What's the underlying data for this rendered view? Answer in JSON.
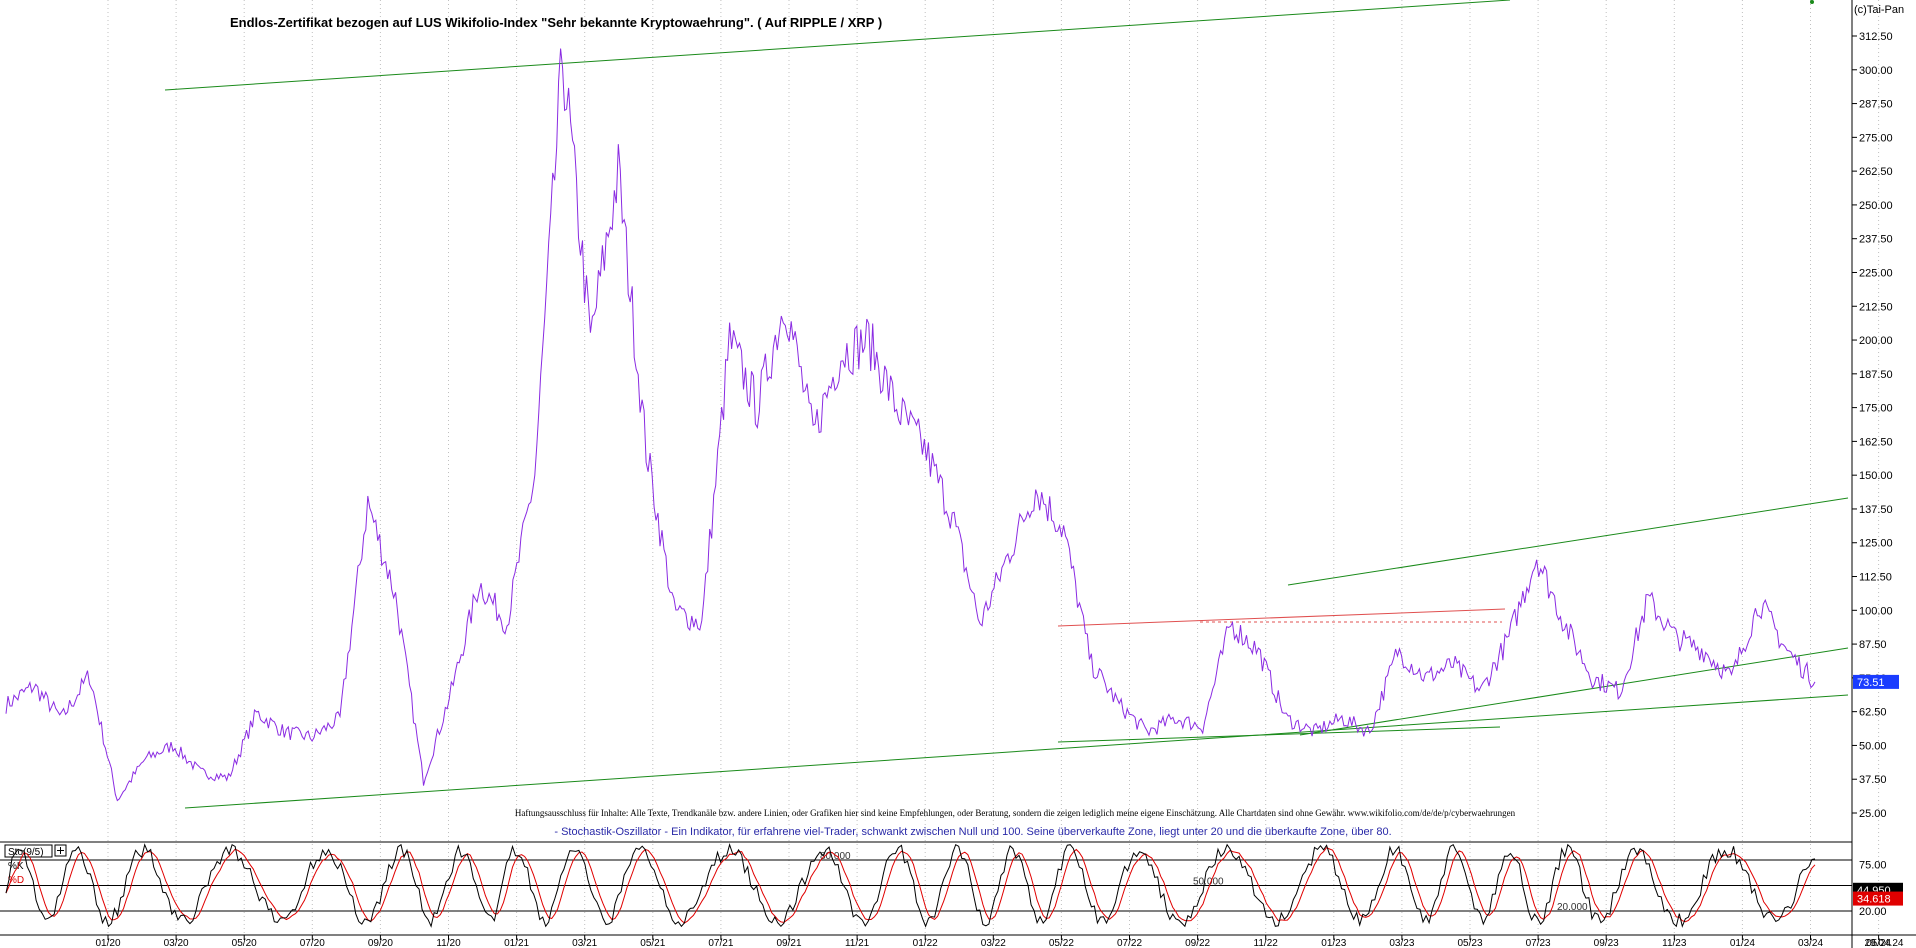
{
  "copyright": "(c)Tai-Pan",
  "title": "Endlos-Zertifikat bezogen auf LUS Wikifolio-Index \"Sehr bekannte Kryptowaehrung\". ( Auf RIPPLE / XRP )",
  "disclaimer": "Haftungsausschluss für Inhalte: Alle Texte, Trendkanäle bzw. andere Linien, oder Grafiken hier sind keine Empfehlungen, oder Beratung, sondern die zeigen lediglich meine eigene Einschätzung. Alle Chartdaten sind ohne Gewähr. www.wikifolio.com/de/de/p/cyberwaehrungen",
  "stoch_note": "- Stochastik-Oszillator - Ein Indikator, für erfahrene viel-Trader, schwankt zwischen Null und 100. Seine überverkaufte Zone, liegt unter 20 und die überkaufte Zone, über 80.",
  "colors": {
    "price": "#8a2be2",
    "trend": "#1a8a1a",
    "resistance": "#e05050",
    "k_line": "#000000",
    "d_line": "#e00000",
    "axis_text": "#000000",
    "last_price_bg": "#1a3cff",
    "k_box_bg": "#000000",
    "d_box_bg": "#e00000"
  },
  "chart_data": [
    {
      "type": "line",
      "ylim": [
        25.0,
        312.5
      ],
      "y_ticks": [
        "312.50",
        "300.00",
        "287.50",
        "275.00",
        "262.50",
        "250.00",
        "237.50",
        "225.00",
        "212.50",
        "200.00",
        "187.50",
        "175.00",
        "162.50",
        "150.00",
        "137.50",
        "125.00",
        "112.50",
        "100.00",
        "87.50",
        "75.00",
        "62.50",
        "50.00",
        "37.50",
        "25.00"
      ],
      "x_ticks": [
        "01/20",
        "03/20",
        "05/20",
        "07/20",
        "09/20",
        "11/20",
        "01/21",
        "03/21",
        "05/21",
        "07/21",
        "09/21",
        "11/21",
        "01/22",
        "03/22",
        "05/22",
        "07/22",
        "09/22",
        "11/22",
        "01/23",
        "03/23",
        "05/23",
        "07/23",
        "09/23",
        "11/23",
        "01/24",
        "03/24",
        "05/24"
      ],
      "x_end_label": "29.04.24",
      "last_value_label": "73.51",
      "series": [
        {
          "points": [
            [
              "12/19",
              65
            ],
            [
              "01/20",
              72
            ],
            [
              "02/20",
              60
            ],
            [
              "02/20b",
              76
            ],
            [
              "03/20",
              30
            ],
            [
              "04/20",
              45
            ],
            [
              "05/20",
              50
            ],
            [
              "06/20",
              40
            ],
            [
              "07/20",
              38
            ],
            [
              "08/20",
              62
            ],
            [
              "09/20",
              55
            ],
            [
              "10/20",
              53
            ],
            [
              "11/20",
              60
            ],
            [
              "11/20b",
              140
            ],
            [
              "12/20",
              105
            ],
            [
              "01/21",
              37
            ],
            [
              "01/21b",
              70
            ],
            [
              "02/21",
              110
            ],
            [
              "03/21",
              95
            ],
            [
              "04/21",
              150
            ],
            [
              "04/21b",
              305
            ],
            [
              "05/21",
              200
            ],
            [
              "05/21b",
              262
            ],
            [
              "06/21",
              160
            ],
            [
              "06/21b",
              100
            ],
            [
              "07/21",
              95
            ],
            [
              "07/21b",
              200
            ],
            [
              "08/21",
              175
            ],
            [
              "08/21b",
              215
            ],
            [
              "09/21",
              165
            ],
            [
              "10/21",
              195
            ],
            [
              "11/21",
              200
            ],
            [
              "11/21b",
              175
            ],
            [
              "12/21",
              160
            ],
            [
              "01/22",
              135
            ],
            [
              "02/22",
              95
            ],
            [
              "03/22",
              120
            ],
            [
              "03/22b",
              145
            ],
            [
              "04/22",
              130
            ],
            [
              "05/22",
              80
            ],
            [
              "05/22b",
              65
            ],
            [
              "06/22",
              55
            ],
            [
              "07/22",
              60
            ],
            [
              "08/22",
              57
            ],
            [
              "09/22",
              95
            ],
            [
              "10/22",
              85
            ],
            [
              "11/22",
              60
            ],
            [
              "12/22",
              55
            ],
            [
              "01/23",
              60
            ],
            [
              "02/23",
              55
            ],
            [
              "03/23",
              85
            ],
            [
              "04/23",
              75
            ],
            [
              "05/23",
              80
            ],
            [
              "06/23",
              70
            ],
            [
              "07/23",
              90
            ],
            [
              "07/23b",
              120
            ],
            [
              "08/23",
              95
            ],
            [
              "09/23",
              75
            ],
            [
              "10/23",
              70
            ],
            [
              "11/23",
              104
            ],
            [
              "12/23",
              90
            ],
            [
              "01/24",
              85
            ],
            [
              "02/24",
              75
            ],
            [
              "03/24",
              103
            ],
            [
              "04/24",
              85
            ],
            [
              "04/24b",
              73.51
            ]
          ]
        }
      ],
      "annotations": [
        "80.000",
        "50.000",
        "20.000"
      ]
    },
    {
      "type": "line",
      "title": "Sto(9/5)",
      "ylim": [
        0,
        100
      ],
      "y_ticks": [
        "75.00",
        "20.00"
      ],
      "series": [
        {
          "name": "%K",
          "last": "44.950"
        },
        {
          "name": "%D",
          "last": "34.618"
        }
      ]
    }
  ]
}
